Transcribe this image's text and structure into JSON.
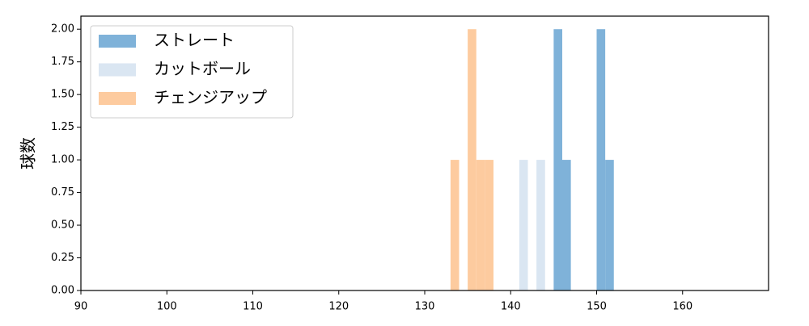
{
  "chart_data": {
    "type": "histogram",
    "y_label": "球数",
    "bins": [
      133,
      134,
      135,
      136,
      137,
      138,
      139,
      140,
      141,
      142,
      143,
      144,
      145,
      146,
      147,
      148,
      149,
      150,
      151,
      152
    ],
    "series": [
      {
        "name": "ストレート",
        "color": "#7fb2d9",
        "values": [
          0,
          0,
          0,
          0,
          0,
          0,
          0,
          0,
          0,
          0,
          0,
          0,
          2,
          1,
          0,
          0,
          0,
          2,
          1
        ]
      },
      {
        "name": "カットボール",
        "color": "#dae6f2",
        "values": [
          0,
          0,
          0,
          0,
          0,
          0,
          0,
          0,
          1,
          0,
          1,
          0,
          0,
          0,
          0,
          0,
          0,
          0,
          0
        ]
      },
      {
        "name": "チェンジアップ",
        "color": "#fdcb9f",
        "values": [
          1,
          0,
          2,
          1,
          1,
          0,
          0,
          0,
          0,
          0,
          0,
          0,
          0,
          0,
          0,
          0,
          0,
          0,
          0
        ]
      }
    ],
    "xlim": [
      90,
      170
    ],
    "xticks": [
      90,
      100,
      110,
      120,
      130,
      140,
      150,
      160
    ],
    "ylim": [
      0,
      2.1
    ],
    "yticks": [
      {
        "value": 0,
        "label": "0.00"
      },
      {
        "value": 0.25,
        "label": "0.25"
      },
      {
        "value": 0.5,
        "label": "0.50"
      },
      {
        "value": 0.75,
        "label": "0.75"
      },
      {
        "value": 1,
        "label": "1.00"
      },
      {
        "value": 1.25,
        "label": "1.25"
      },
      {
        "value": 1.5,
        "label": "1.50"
      },
      {
        "value": 1.75,
        "label": "1.75"
      },
      {
        "value": 2,
        "label": "2.00"
      }
    ],
    "legend": "upper-left"
  }
}
